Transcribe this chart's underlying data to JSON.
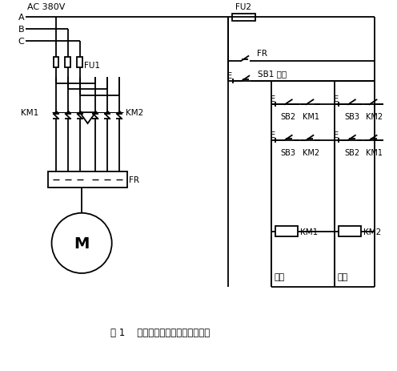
{
  "bg_color": "#ffffff",
  "line_color": "#000000",
  "title": "图 1    异步电动机正反转控制电路图",
  "labels": {
    "ac": "AC 380V",
    "A": "A",
    "B": "B",
    "C": "C",
    "FU1": "FU1",
    "FU2": "FU2",
    "FR_ctrl": "FR",
    "FR_pwr": "FR",
    "KM1": "KM1",
    "KM2": "KM2",
    "SB1": "SB1 停车",
    "SB2": "SB2",
    "SB3": "SB3",
    "KM1_self": "KM1",
    "KM2_self": "KM2",
    "KM2_interlock": "KM2",
    "KM1_interlock": "KM1",
    "KM1_coil": "KM1",
    "KM2_coil": "KM2",
    "M": "M",
    "zhengzhuan": "正转",
    "fanzhuan": "反转"
  }
}
